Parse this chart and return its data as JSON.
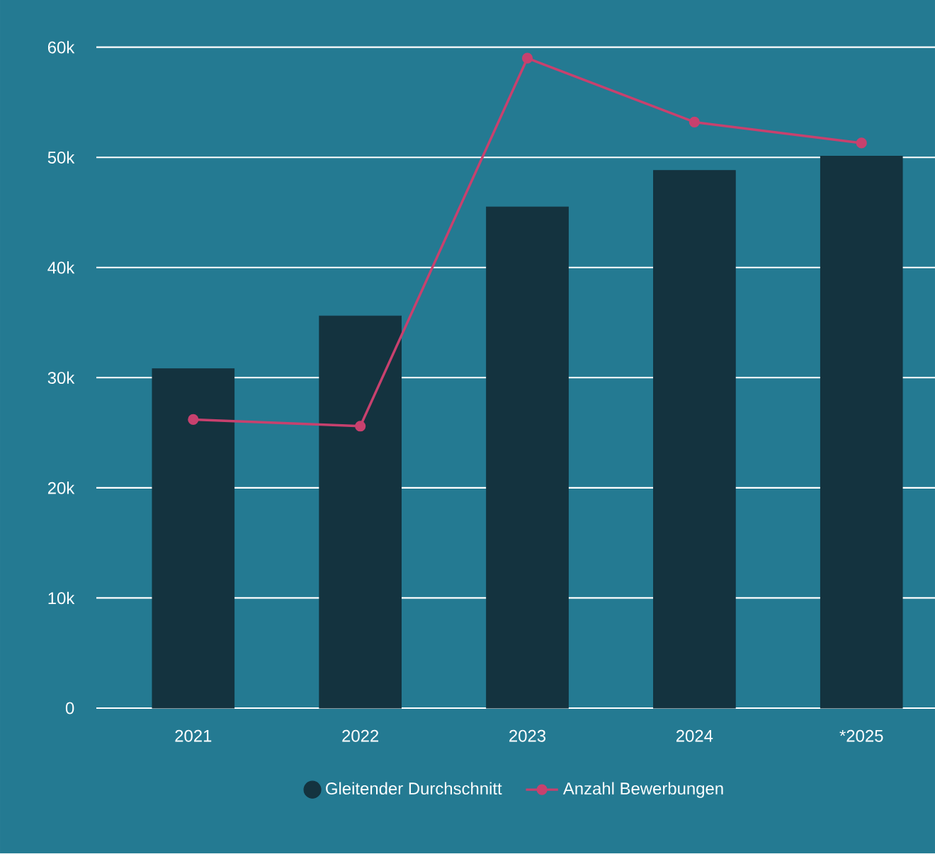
{
  "chart_data": {
    "type": "bar",
    "categories": [
      "2021",
      "2022",
      "2023",
      "2024",
      "*2025"
    ],
    "series": [
      {
        "name": "Gleitender Durchschnitt",
        "color": "#14333f",
        "values": [
          30800,
          35600,
          45500,
          48800,
          50100
        ]
      },
      {
        "name": "Anzahl Bewerbungen",
        "type": "line",
        "color": "#c8416e",
        "values": [
          26200,
          25600,
          59000,
          53200,
          51300
        ]
      }
    ],
    "ylim": [
      0,
      60000
    ],
    "yticks": [
      {
        "value": 0,
        "label": "0"
      },
      {
        "value": 10000,
        "label": "10k"
      },
      {
        "value": 20000,
        "label": "20k"
      },
      {
        "value": 30000,
        "label": "30k"
      },
      {
        "value": 40000,
        "label": "40k"
      },
      {
        "value": 50000,
        "label": "50k"
      },
      {
        "value": 60000,
        "label": "60k"
      }
    ],
    "grid": "y",
    "legend": "bottom",
    "marker": "circle"
  }
}
